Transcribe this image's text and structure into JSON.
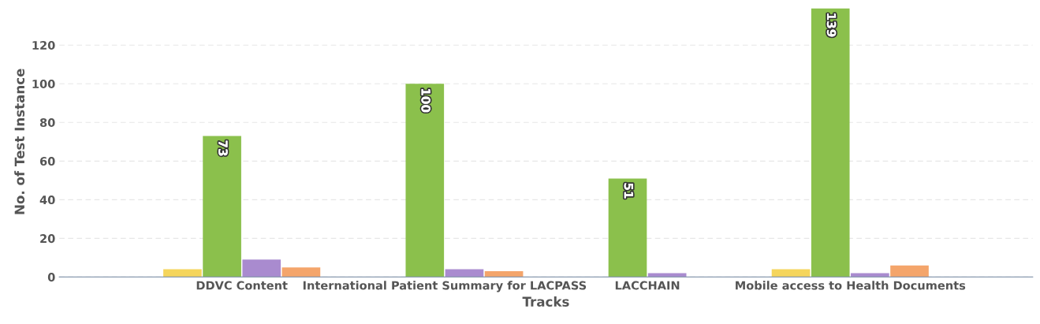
{
  "chart_data": {
    "type": "bar",
    "xlabel": "Tracks",
    "ylabel": "No. of Test Instance",
    "categories": [
      "DDVC Content",
      "International Patient Summary for LACPASS",
      "LACCHAIN",
      "Mobile access to Health Documents"
    ],
    "series": [
      {
        "color": "#f5d55c",
        "values": [
          4,
          null,
          null,
          4
        ]
      },
      {
        "color": "#8bc04c",
        "values": [
          73,
          100,
          51,
          139
        ],
        "value_labels": [
          "73",
          "100",
          "51",
          "139"
        ]
      },
      {
        "color": "#a98bcf",
        "values": [
          9,
          4,
          2,
          2
        ]
      },
      {
        "color": "#f4a56b",
        "values": [
          5,
          3,
          null,
          6
        ]
      }
    ],
    "ylim": [
      0,
      140
    ],
    "yticks": [
      0,
      20,
      40,
      60,
      80,
      100,
      120
    ],
    "grid": "y",
    "legend": false
  }
}
